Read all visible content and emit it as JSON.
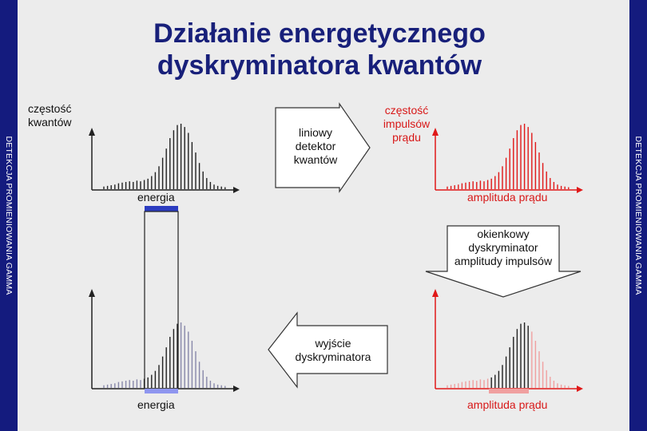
{
  "title": {
    "line1": "Działanie energetycznego",
    "line2": "dyskryminatora kwantów"
  },
  "side_label": "DETEKCJA PROMIENIOWANIA GAMMA",
  "top_left": {
    "ylabel_1": "częstość",
    "ylabel_2": "kwantów",
    "xlabel": "energia"
  },
  "detector_arrow": {
    "line1": "liniowy",
    "line2": "detektor",
    "line3": "kwantów"
  },
  "top_right": {
    "ylabel_1": "częstość",
    "ylabel_2": "impulsów",
    "ylabel_3": "prądu",
    "xlabel": "amplituda prądu"
  },
  "discriminator_arrow": {
    "line1": "okienkowy",
    "line2": "dyskryminator",
    "line3": "amplitudy impulsów"
  },
  "output_arrow": {
    "line1": "wyjście",
    "line2": "dyskryminatora"
  },
  "bottom_left": {
    "xlabel": "energia"
  },
  "bottom_right": {
    "xlabel": "amplituda prądu"
  },
  "colors": {
    "sidebar": "#141b7e",
    "title": "#18207a",
    "spectrum": "#222222",
    "spectrum_light": "#8888aa",
    "red_spectrum": "#e01818",
    "red_light": "#f0a0a0",
    "window_bar": "#2c3cc0",
    "window_bar_light": "#8f96f0"
  },
  "chart_data": [
    {
      "type": "bar",
      "name": "energy spectrum (top left)",
      "values": [
        0.04,
        0.05,
        0.06,
        0.07,
        0.09,
        0.1,
        0.11,
        0.12,
        0.11,
        0.13,
        0.12,
        0.14,
        0.16,
        0.2,
        0.26,
        0.35,
        0.48,
        0.62,
        0.78,
        0.9,
        0.98,
        1.0,
        0.95,
        0.86,
        0.72,
        0.56,
        0.4,
        0.27,
        0.17,
        0.11,
        0.07,
        0.05,
        0.04,
        0.03
      ]
    },
    {
      "type": "bar",
      "name": "current amplitude spectrum (top right)",
      "values": [
        0.04,
        0.05,
        0.06,
        0.07,
        0.09,
        0.1,
        0.11,
        0.12,
        0.11,
        0.13,
        0.12,
        0.14,
        0.16,
        0.2,
        0.26,
        0.35,
        0.48,
        0.62,
        0.78,
        0.9,
        0.98,
        1.0,
        0.95,
        0.86,
        0.72,
        0.56,
        0.4,
        0.27,
        0.17,
        0.11,
        0.07,
        0.05,
        0.04,
        0.03
      ]
    }
  ]
}
